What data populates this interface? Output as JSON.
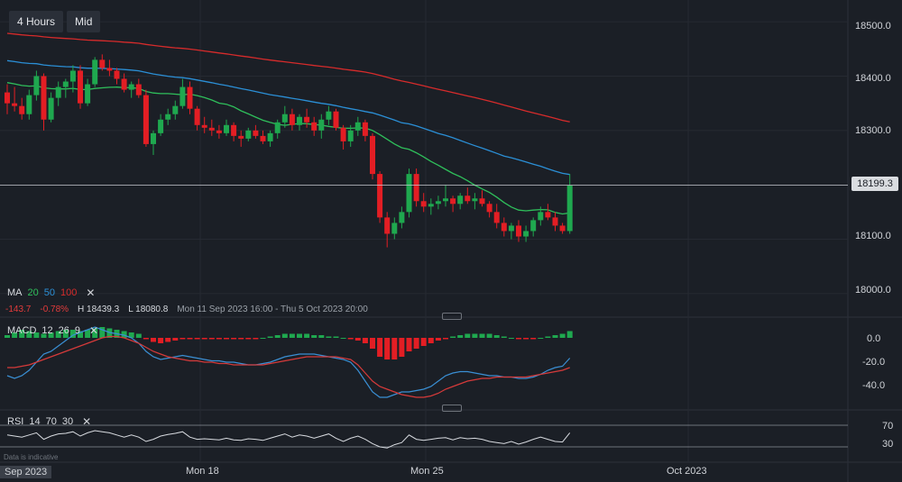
{
  "timeframe": {
    "interval": "4 Hours",
    "price_type": "Mid"
  },
  "ma_legend": {
    "label": "MA",
    "p1": "20",
    "p2": "50",
    "p3": "100",
    "colors": {
      "ma20": "#2fbf5b",
      "ma50": "#2b8fd6",
      "ma100": "#d62b2b"
    }
  },
  "stats": {
    "change": "-143.7",
    "change_pct": "-0.78%",
    "high": "H 18439.3",
    "low": "L 18080.8",
    "range": "Mon 11 Sep 2023 16:00 - Thu 5 Oct 2023 20:00"
  },
  "macd_legend": {
    "label": "MACD",
    "fast": "12",
    "slow": "26",
    "signal": "9"
  },
  "rsi_legend": {
    "label": "RSI",
    "period": "14",
    "upper": "70",
    "lower": "30"
  },
  "current_price": "18199.3",
  "price_axis": [
    "18500.0",
    "18400.0",
    "18300.0",
    "18200.0",
    "18100.0",
    "18000.0"
  ],
  "macd_axis": [
    "0.0",
    "-20.0",
    "-40.0"
  ],
  "rsi_axis": [
    "70",
    "30"
  ],
  "x_labels": [
    "Sep 2023",
    "Mon 18",
    "Mon 25",
    "Oct 2023"
  ],
  "disclaimer": "Data is indicative",
  "colors": {
    "up": "#1fa84f",
    "down": "#e31e24",
    "background": "#1b1f26"
  },
  "chart_data": {
    "type": "candlestick",
    "title": "",
    "interval": "4 Hours",
    "x_range": [
      "Mon 11 Sep 2023 16:00",
      "Thu 5 Oct 2023 20:00"
    ],
    "ylim": [
      17960,
      18540
    ],
    "last": 18199.3,
    "high": 18439.3,
    "low": 18080.8,
    "candles": [
      [
        18370,
        18385,
        18330,
        18350
      ],
      [
        18350,
        18380,
        18335,
        18345
      ],
      [
        18345,
        18360,
        18320,
        18330
      ],
      [
        18330,
        18375,
        18320,
        18365
      ],
      [
        18365,
        18410,
        18355,
        18400
      ],
      [
        18400,
        18405,
        18300,
        18320
      ],
      [
        18320,
        18370,
        18315,
        18360
      ],
      [
        18360,
        18390,
        18345,
        18380
      ],
      [
        18380,
        18395,
        18360,
        18390
      ],
      [
        18390,
        18420,
        18370,
        18410
      ],
      [
        18410,
        18420,
        18340,
        18350
      ],
      [
        18350,
        18395,
        18345,
        18385
      ],
      [
        18385,
        18435,
        18380,
        18430
      ],
      [
        18430,
        18440,
        18410,
        18415
      ],
      [
        18415,
        18430,
        18400,
        18410
      ],
      [
        18410,
        18415,
        18385,
        18395
      ],
      [
        18395,
        18405,
        18370,
        18375
      ],
      [
        18375,
        18390,
        18360,
        18385
      ],
      [
        18385,
        18395,
        18360,
        18365
      ],
      [
        18365,
        18375,
        18270,
        18275
      ],
      [
        18275,
        18300,
        18255,
        18295
      ],
      [
        18295,
        18330,
        18290,
        18320
      ],
      [
        18320,
        18340,
        18310,
        18330
      ],
      [
        18330,
        18355,
        18320,
        18345
      ],
      [
        18345,
        18395,
        18340,
        18380
      ],
      [
        18380,
        18390,
        18330,
        18340
      ],
      [
        18340,
        18345,
        18300,
        18310
      ],
      [
        18310,
        18325,
        18295,
        18305
      ],
      [
        18305,
        18320,
        18290,
        18300
      ],
      [
        18300,
        18310,
        18285,
        18295
      ],
      [
        18295,
        18320,
        18290,
        18310
      ],
      [
        18310,
        18315,
        18280,
        18290
      ],
      [
        18290,
        18300,
        18270,
        18285
      ],
      [
        18285,
        18305,
        18280,
        18300
      ],
      [
        18300,
        18310,
        18285,
        18290
      ],
      [
        18290,
        18300,
        18275,
        18280
      ],
      [
        18280,
        18300,
        18270,
        18295
      ],
      [
        18295,
        18320,
        18285,
        18315
      ],
      [
        18315,
        18345,
        18305,
        18330
      ],
      [
        18330,
        18340,
        18300,
        18310
      ],
      [
        18310,
        18330,
        18300,
        18325
      ],
      [
        18325,
        18340,
        18305,
        18315
      ],
      [
        18315,
        18325,
        18290,
        18300
      ],
      [
        18300,
        18330,
        18285,
        18320
      ],
      [
        18320,
        18345,
        18310,
        18335
      ],
      [
        18335,
        18340,
        18300,
        18305
      ],
      [
        18305,
        18310,
        18265,
        18280
      ],
      [
        18280,
        18310,
        18270,
        18300
      ],
      [
        18300,
        18325,
        18290,
        18315
      ],
      [
        18315,
        18320,
        18280,
        18290
      ],
      [
        18290,
        18295,
        18210,
        18220
      ],
      [
        18220,
        18225,
        18130,
        18140
      ],
      [
        18140,
        18150,
        18085,
        18110
      ],
      [
        18110,
        18140,
        18100,
        18130
      ],
      [
        18130,
        18160,
        18120,
        18150
      ],
      [
        18150,
        18230,
        18140,
        18220
      ],
      [
        18220,
        18230,
        18160,
        18170
      ],
      [
        18170,
        18185,
        18150,
        18160
      ],
      [
        18160,
        18175,
        18145,
        18165
      ],
      [
        18165,
        18180,
        18155,
        18170
      ],
      [
        18170,
        18200,
        18160,
        18175
      ],
      [
        18175,
        18180,
        18150,
        18165
      ],
      [
        18165,
        18185,
        18155,
        18180
      ],
      [
        18180,
        18195,
        18165,
        18170
      ],
      [
        18170,
        18185,
        18155,
        18175
      ],
      [
        18175,
        18190,
        18160,
        18165
      ],
      [
        18165,
        18170,
        18140,
        18150
      ],
      [
        18150,
        18165,
        18120,
        18130
      ],
      [
        18130,
        18140,
        18105,
        18115
      ],
      [
        18115,
        18130,
        18100,
        18125
      ],
      [
        18125,
        18135,
        18095,
        18105
      ],
      [
        18105,
        18125,
        18095,
        18115
      ],
      [
        18115,
        18140,
        18105,
        18135
      ],
      [
        18135,
        18160,
        18125,
        18150
      ],
      [
        18150,
        18165,
        18135,
        18140
      ],
      [
        18140,
        18150,
        18115,
        18125
      ],
      [
        18125,
        18130,
        18110,
        18115
      ],
      [
        18115,
        18220,
        18110,
        18199.3
      ]
    ],
    "macd_histogram": [
      2,
      4,
      6,
      5,
      4,
      3,
      4,
      5,
      6,
      6,
      5,
      6,
      7,
      8,
      7,
      6,
      5,
      4,
      3,
      -1,
      -3,
      -4,
      -3,
      -2,
      -1,
      -1,
      -1,
      -1,
      -1,
      -1,
      -1,
      -1,
      -1,
      -1,
      -1,
      0,
      1,
      2,
      3,
      3,
      3,
      3,
      2,
      2,
      1,
      1,
      0,
      -1,
      -2,
      -4,
      -8,
      -14,
      -16,
      -16,
      -14,
      -10,
      -8,
      -6,
      -4,
      -2,
      -1,
      1,
      2,
      3,
      3,
      3,
      3,
      2,
      1,
      0,
      -1,
      -1,
      -1,
      0,
      1,
      2,
      3,
      5
    ],
    "macd_line": [
      -28,
      -30,
      -28,
      -24,
      -18,
      -12,
      -10,
      -6,
      -2,
      2,
      4,
      6,
      8,
      6,
      4,
      3,
      2,
      0,
      -4,
      -10,
      -14,
      -16,
      -15,
      -14,
      -13,
      -14,
      -15,
      -16,
      -17,
      -17,
      -18,
      -18,
      -19,
      -20,
      -20,
      -19,
      -18,
      -16,
      -14,
      -13,
      -12,
      -12,
      -12,
      -13,
      -14,
      -15,
      -16,
      -18,
      -24,
      -32,
      -40,
      -44,
      -44,
      -42,
      -40,
      -40,
      -39,
      -38,
      -36,
      -32,
      -28,
      -26,
      -25,
      -25,
      -26,
      -27,
      -28,
      -28,
      -29,
      -29,
      -30,
      -30,
      -29,
      -27,
      -24,
      -22,
      -21,
      -15
    ],
    "macd_signal": [
      -22,
      -22,
      -21,
      -20,
      -18,
      -16,
      -14,
      -12,
      -10,
      -8,
      -6,
      -4,
      -2,
      0,
      1,
      1,
      0,
      -2,
      -4,
      -7,
      -10,
      -12,
      -14,
      -15,
      -16,
      -17,
      -17,
      -18,
      -18,
      -19,
      -19,
      -20,
      -20,
      -20,
      -20,
      -20,
      -19,
      -18,
      -17,
      -16,
      -15,
      -14,
      -14,
      -14,
      -14,
      -14,
      -15,
      -16,
      -20,
      -26,
      -32,
      -36,
      -38,
      -40,
      -42,
      -43,
      -44,
      -44,
      -43,
      -41,
      -38,
      -36,
      -34,
      -32,
      -31,
      -30,
      -30,
      -29,
      -29,
      -29,
      -29,
      -29,
      -28,
      -27,
      -26,
      -25,
      -24,
      -22
    ],
    "rsi": [
      52,
      50,
      48,
      52,
      56,
      44,
      50,
      54,
      55,
      58,
      50,
      56,
      60,
      58,
      56,
      52,
      48,
      52,
      48,
      40,
      44,
      50,
      53,
      55,
      58,
      48,
      44,
      45,
      44,
      43,
      46,
      43,
      42,
      45,
      44,
      42,
      46,
      50,
      54,
      48,
      52,
      50,
      46,
      50,
      54,
      46,
      40,
      46,
      50,
      44,
      36,
      30,
      28,
      34,
      38,
      52,
      44,
      42,
      44,
      46,
      47,
      43,
      47,
      45,
      46,
      44,
      40,
      38,
      36,
      40,
      35,
      39,
      44,
      48,
      44,
      40,
      39,
      56
    ]
  }
}
